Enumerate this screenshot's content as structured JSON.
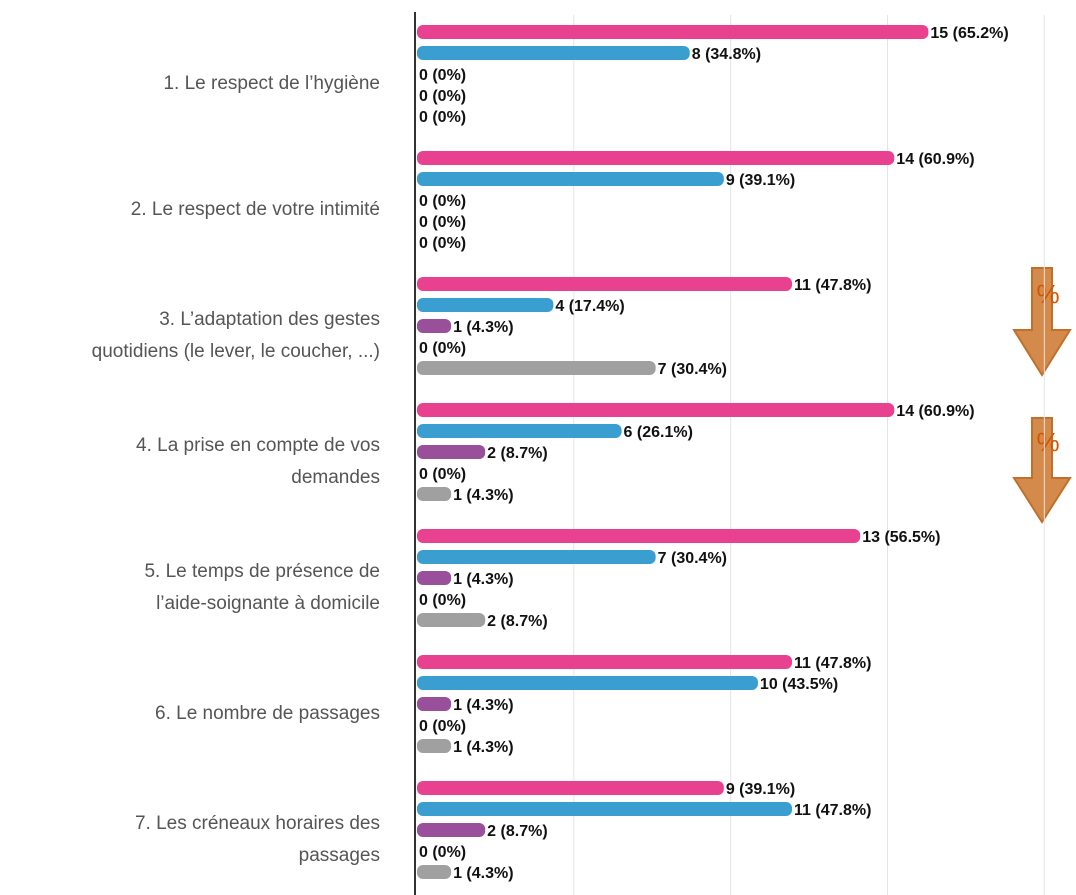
{
  "chart_data": {
    "type": "bar",
    "orientation": "horizontal",
    "categories": [
      [
        "1. Le respect de l’hygiène"
      ],
      [
        "2. Le respect de votre intimité"
      ],
      [
        "3. L’adaptation des gestes",
        "quotidiens (le lever, le coucher, ...)"
      ],
      [
        "4. La prise en compte de vos",
        "demandes"
      ],
      [
        "5. Le temps de présence de",
        "l’aide-soignante à domicile"
      ],
      [
        "6. Le nombre de passages"
      ],
      [
        "7. Les créneaux horaires des",
        "passages"
      ]
    ],
    "series": [
      {
        "color": "#e8418f",
        "values": [
          15,
          14,
          11,
          14,
          13,
          11,
          9
        ],
        "value_labels": [
          "15 (65.2%)",
          "14 (60.9%)",
          "11 (47.8%)",
          "14 (60.9%)",
          "13 (56.5%)",
          "11 (47.8%)",
          "9 (39.1%)"
        ]
      },
      {
        "color": "#3a9fd0",
        "values": [
          8,
          9,
          4,
          6,
          7,
          10,
          11
        ],
        "value_labels": [
          "8 (34.8%)",
          "9 (39.1%)",
          "4 (17.4%)",
          "6 (26.1%)",
          "7 (30.4%)",
          "10 (43.5%)",
          "11 (47.8%)"
        ]
      },
      {
        "color": "#9a4f9a",
        "values": [
          0,
          0,
          1,
          2,
          1,
          1,
          2
        ],
        "value_labels": [
          "0 (0%)",
          "0 (0%)",
          "1 (4.3%)",
          "2 (8.7%)",
          "1 (4.3%)",
          "1 (4.3%)",
          "2 (8.7%)"
        ]
      },
      {
        "color": "#d9a441",
        "values": [
          0,
          0,
          0,
          0,
          0,
          0,
          0
        ],
        "value_labels": [
          "0 (0%)",
          "0 (0%)",
          "0 (0%)",
          "0 (0%)",
          "0 (0%)",
          "0 (0%)",
          "0 (0%)"
        ]
      },
      {
        "color": "#a0a0a0",
        "values": [
          0,
          0,
          7,
          1,
          2,
          1,
          1
        ],
        "value_labels": [
          "0 (0%)",
          "0 (0%)",
          "7 (30.4%)",
          "1 (4.3%)",
          "2 (8.7%)",
          "1 (4.3%)",
          "1 (4.3%)"
        ]
      }
    ],
    "xlim": [
      0,
      19.3
    ],
    "xticks": [
      4.6,
      9.2,
      13.8,
      18.4
    ],
    "grid": true,
    "annotations": [
      "%",
      "%"
    ]
  }
}
